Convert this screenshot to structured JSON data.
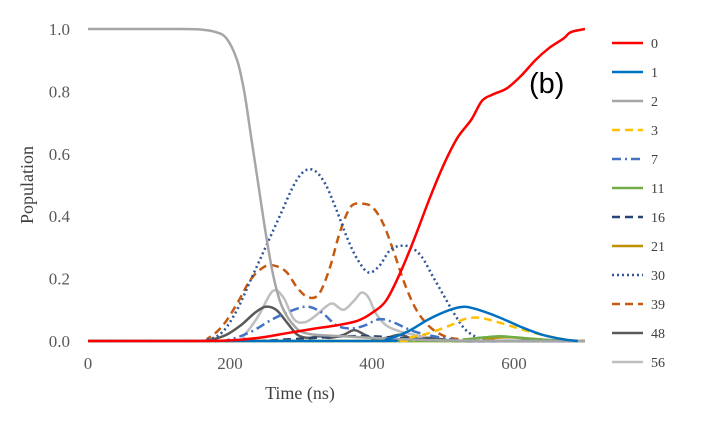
{
  "chart_data": {
    "type": "line",
    "panel_label": "(b)",
    "xlabel": "Time (ns)",
    "ylabel": "Population",
    "xlim": [
      0,
      700
    ],
    "ylim": [
      0,
      1.0
    ],
    "x_ticks": [
      0,
      200,
      400,
      600
    ],
    "x_tick_labels": [
      "0",
      "200",
      "400",
      "600"
    ],
    "y_ticks": [
      0,
      0.2,
      0.4,
      0.6,
      0.8,
      1.0
    ],
    "y_tick_labels": [
      "0.0",
      "0.2",
      "0.4",
      "0.6",
      "0.8",
      "1.0"
    ],
    "grid": false,
    "legend_position": "right",
    "series": [
      {
        "name": "0",
        "color": "#ff0000",
        "dash": "solid",
        "points": [
          [
            0,
            0
          ],
          [
            150,
            0
          ],
          [
            200,
            0.002
          ],
          [
            240,
            0.01
          ],
          [
            280,
            0.025
          ],
          [
            320,
            0.04
          ],
          [
            350,
            0.05
          ],
          [
            380,
            0.065
          ],
          [
            400,
            0.09
          ],
          [
            420,
            0.13
          ],
          [
            440,
            0.22
          ],
          [
            460,
            0.33
          ],
          [
            480,
            0.45
          ],
          [
            500,
            0.56
          ],
          [
            520,
            0.65
          ],
          [
            540,
            0.71
          ],
          [
            555,
            0.77
          ],
          [
            570,
            0.79
          ],
          [
            590,
            0.81
          ],
          [
            610,
            0.85
          ],
          [
            630,
            0.9
          ],
          [
            650,
            0.94
          ],
          [
            670,
            0.97
          ],
          [
            680,
            0.99
          ],
          [
            700,
            1.0
          ]
        ]
      },
      {
        "name": "1",
        "color": "#0070c0",
        "dash": "solid",
        "points": [
          [
            0,
            0
          ],
          [
            400,
            0
          ],
          [
            420,
            0.005
          ],
          [
            450,
            0.03
          ],
          [
            480,
            0.07
          ],
          [
            510,
            0.1
          ],
          [
            530,
            0.11
          ],
          [
            550,
            0.1
          ],
          [
            580,
            0.075
          ],
          [
            610,
            0.045
          ],
          [
            640,
            0.02
          ],
          [
            670,
            0.005
          ],
          [
            690,
            0
          ]
        ]
      },
      {
        "name": "2",
        "color": "#a6a6a6",
        "dash": "solid",
        "points": [
          [
            0,
            1.0
          ],
          [
            130,
            1.0
          ],
          [
            160,
            0.998
          ],
          [
            180,
            0.99
          ],
          [
            195,
            0.97
          ],
          [
            210,
            0.9
          ],
          [
            220,
            0.8
          ],
          [
            230,
            0.65
          ],
          [
            240,
            0.5
          ],
          [
            250,
            0.35
          ],
          [
            260,
            0.22
          ],
          [
            270,
            0.13
          ],
          [
            280,
            0.08
          ],
          [
            290,
            0.05
          ],
          [
            300,
            0.03
          ],
          [
            320,
            0.02
          ],
          [
            360,
            0.015
          ],
          [
            400,
            0.01
          ],
          [
            450,
            0.005
          ],
          [
            500,
            0.002
          ],
          [
            600,
            0
          ],
          [
            700,
            0
          ]
        ]
      },
      {
        "name": "3",
        "color": "#ffc000",
        "dash": "dash",
        "points": [
          [
            0,
            0
          ],
          [
            420,
            0
          ],
          [
            450,
            0.01
          ],
          [
            480,
            0.025
          ],
          [
            510,
            0.05
          ],
          [
            530,
            0.07
          ],
          [
            550,
            0.075
          ],
          [
            570,
            0.065
          ],
          [
            600,
            0.045
          ],
          [
            630,
            0.025
          ],
          [
            660,
            0.01
          ],
          [
            680,
            0.002
          ],
          [
            700,
            0
          ]
        ]
      },
      {
        "name": "7",
        "color": "#4472c4",
        "dash": "dashdot",
        "points": [
          [
            0,
            0
          ],
          [
            170,
            0
          ],
          [
            200,
            0.005
          ],
          [
            230,
            0.03
          ],
          [
            260,
            0.07
          ],
          [
            290,
            0.1
          ],
          [
            310,
            0.11
          ],
          [
            330,
            0.09
          ],
          [
            350,
            0.05
          ],
          [
            370,
            0.04
          ],
          [
            390,
            0.05
          ],
          [
            410,
            0.07
          ],
          [
            430,
            0.06
          ],
          [
            460,
            0.03
          ],
          [
            500,
            0.01
          ],
          [
            540,
            0
          ],
          [
            700,
            0
          ]
        ]
      },
      {
        "name": "11",
        "color": "#70ad47",
        "dash": "solid",
        "points": [
          [
            0,
            0
          ],
          [
            500,
            0
          ],
          [
            530,
            0.005
          ],
          [
            560,
            0.012
          ],
          [
            580,
            0.015
          ],
          [
            600,
            0.012
          ],
          [
            630,
            0.006
          ],
          [
            660,
            0.002
          ],
          [
            690,
            0
          ],
          [
            700,
            0
          ]
        ]
      },
      {
        "name": "16",
        "color": "#264478",
        "dash": "dash",
        "points": [
          [
            0,
            0
          ],
          [
            220,
            0
          ],
          [
            280,
            0.005
          ],
          [
            320,
            0.01
          ],
          [
            360,
            0.015
          ],
          [
            400,
            0.015
          ],
          [
            440,
            0.01
          ],
          [
            480,
            0.005
          ],
          [
            520,
            0
          ],
          [
            700,
            0
          ]
        ]
      },
      {
        "name": "21",
        "color": "#bf9000",
        "dash": "solid",
        "points": [
          [
            0,
            0
          ],
          [
            520,
            0
          ],
          [
            560,
            0.008
          ],
          [
            590,
            0.012
          ],
          [
            620,
            0.008
          ],
          [
            650,
            0.003
          ],
          [
            680,
            0
          ],
          [
            700,
            0
          ]
        ]
      },
      {
        "name": "30",
        "color": "#2e5597",
        "dash": "dot",
        "points": [
          [
            0,
            0
          ],
          [
            150,
            0
          ],
          [
            170,
            0.005
          ],
          [
            190,
            0.03
          ],
          [
            210,
            0.1
          ],
          [
            230,
            0.2
          ],
          [
            250,
            0.3
          ],
          [
            270,
            0.4
          ],
          [
            290,
            0.5
          ],
          [
            305,
            0.545
          ],
          [
            320,
            0.545
          ],
          [
            335,
            0.5
          ],
          [
            350,
            0.42
          ],
          [
            365,
            0.33
          ],
          [
            380,
            0.26
          ],
          [
            395,
            0.22
          ],
          [
            410,
            0.24
          ],
          [
            425,
            0.29
          ],
          [
            440,
            0.305
          ],
          [
            455,
            0.3
          ],
          [
            470,
            0.27
          ],
          [
            485,
            0.21
          ],
          [
            500,
            0.15
          ],
          [
            515,
            0.09
          ],
          [
            530,
            0.04
          ],
          [
            545,
            0.015
          ],
          [
            560,
            0.005
          ],
          [
            580,
            0
          ],
          [
            700,
            0
          ]
        ]
      },
      {
        "name": "39",
        "color": "#c55a11",
        "dash": "dash",
        "points": [
          [
            0,
            0
          ],
          [
            150,
            0
          ],
          [
            170,
            0.01
          ],
          [
            190,
            0.05
          ],
          [
            210,
            0.12
          ],
          [
            230,
            0.2
          ],
          [
            250,
            0.24
          ],
          [
            265,
            0.24
          ],
          [
            280,
            0.22
          ],
          [
            295,
            0.17
          ],
          [
            310,
            0.14
          ],
          [
            325,
            0.15
          ],
          [
            340,
            0.23
          ],
          [
            355,
            0.35
          ],
          [
            370,
            0.43
          ],
          [
            385,
            0.44
          ],
          [
            400,
            0.43
          ],
          [
            415,
            0.38
          ],
          [
            430,
            0.29
          ],
          [
            445,
            0.19
          ],
          [
            460,
            0.11
          ],
          [
            475,
            0.06
          ],
          [
            490,
            0.03
          ],
          [
            510,
            0.01
          ],
          [
            540,
            0.003
          ],
          [
            570,
            0
          ],
          [
            700,
            0
          ]
        ]
      },
      {
        "name": "48",
        "color": "#595959",
        "dash": "solid",
        "points": [
          [
            0,
            0
          ],
          [
            150,
            0
          ],
          [
            175,
            0.005
          ],
          [
            195,
            0.02
          ],
          [
            215,
            0.05
          ],
          [
            235,
            0.09
          ],
          [
            250,
            0.11
          ],
          [
            265,
            0.1
          ],
          [
            280,
            0.06
          ],
          [
            295,
            0.02
          ],
          [
            310,
            0.01
          ],
          [
            325,
            0.015
          ],
          [
            340,
            0.01
          ],
          [
            360,
            0.02
          ],
          [
            375,
            0.035
          ],
          [
            390,
            0.02
          ],
          [
            405,
            0.005
          ],
          [
            420,
            0.01
          ],
          [
            440,
            0.02
          ],
          [
            460,
            0.005
          ],
          [
            480,
            0.01
          ],
          [
            500,
            0.005
          ],
          [
            530,
            0
          ],
          [
            700,
            0
          ]
        ]
      },
      {
        "name": "56",
        "color": "#bfbfbf",
        "dash": "solid",
        "points": [
          [
            0,
            0
          ],
          [
            200,
            0
          ],
          [
            220,
            0.02
          ],
          [
            240,
            0.08
          ],
          [
            260,
            0.16
          ],
          [
            275,
            0.14
          ],
          [
            290,
            0.07
          ],
          [
            305,
            0.06
          ],
          [
            320,
            0.08
          ],
          [
            335,
            0.11
          ],
          [
            345,
            0.12
          ],
          [
            360,
            0.1
          ],
          [
            375,
            0.13
          ],
          [
            385,
            0.155
          ],
          [
            395,
            0.14
          ],
          [
            405,
            0.09
          ],
          [
            420,
            0.05
          ],
          [
            440,
            0.03
          ],
          [
            460,
            0.02
          ],
          [
            480,
            0.01
          ],
          [
            500,
            0.005
          ],
          [
            530,
            0
          ],
          [
            700,
            0
          ]
        ]
      }
    ]
  }
}
